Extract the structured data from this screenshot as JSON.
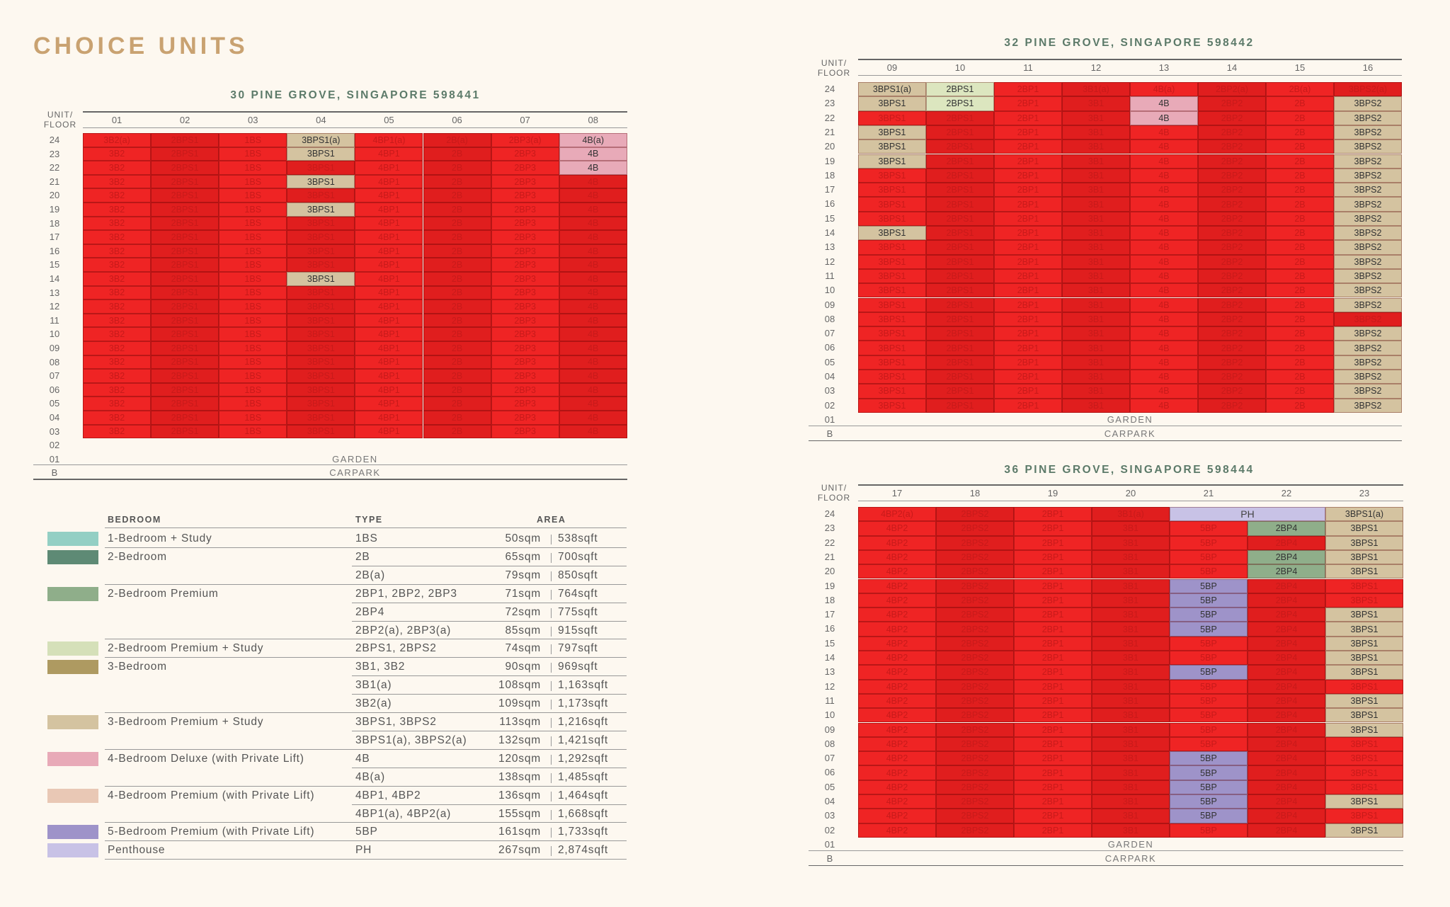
{
  "page_title": "CHOICE UNITS",
  "unit_floor_label": [
    "UNIT/",
    "FLOOR"
  ],
  "garden_label": "GARDEN",
  "carpark_label": "CARPARK",
  "colors": {
    "red": "#ef2424",
    "sold_shade": "#e01e1e",
    "beige": "#d4c3a0",
    "pale_green": "#dce6bf",
    "pink": "#e8aab8",
    "purple": "#9e93c9",
    "lavender": "#c8c2e6",
    "green": "#8fae8a"
  },
  "blocks": [
    {
      "id": "b30",
      "title": "30 PINE GROVE, SINGAPORE 598441",
      "columns": [
        "01",
        "02",
        "03",
        "04",
        "05",
        "06",
        "07",
        "08"
      ],
      "col_types": [
        "3B2",
        "2BPS1",
        "1BS",
        "3BPS1",
        "4BP1",
        "2B",
        "2BP3",
        "4B"
      ],
      "floors": [
        "24",
        "23",
        "22",
        "21",
        "20",
        "19",
        "18",
        "17",
        "16",
        "15",
        "14",
        "13",
        "12",
        "11",
        "10",
        "09",
        "08",
        "07",
        "06",
        "05",
        "04",
        "03"
      ],
      "extra_floors": [
        "02",
        "01",
        "B"
      ],
      "overrides_24": [
        "3B2(a)",
        "2BPS1",
        "1BS",
        "3BPS1(a)",
        "4BP1(a)",
        "2B(a)",
        "2BP3(a)",
        "4B(a)"
      ],
      "available": [
        {
          "floor": "24",
          "col": 3,
          "label": "3BPS1(a)",
          "color": "beige"
        },
        {
          "floor": "23",
          "col": 3,
          "label": "3BPS1",
          "color": "beige"
        },
        {
          "floor": "21",
          "col": 3,
          "label": "3BPS1",
          "color": "beige"
        },
        {
          "floor": "19",
          "col": 3,
          "label": "3BPS1",
          "color": "beige"
        },
        {
          "floor": "14",
          "col": 3,
          "label": "3BPS1",
          "color": "beige"
        },
        {
          "floor": "24",
          "col": 7,
          "label": "4B(a)",
          "color": "pink"
        },
        {
          "floor": "23",
          "col": 7,
          "label": "4B",
          "color": "pink"
        },
        {
          "floor": "22",
          "col": 7,
          "label": "4B",
          "color": "pink"
        }
      ]
    },
    {
      "id": "b32",
      "title": "32 PINE GROVE, SINGAPORE 598442",
      "columns": [
        "09",
        "10",
        "11",
        "12",
        "13",
        "14",
        "15",
        "16"
      ],
      "col_types": [
        "3BPS1",
        "2BPS1",
        "2BP1",
        "3B1",
        "4B",
        "2BP2",
        "2B",
        "3BPS2"
      ],
      "floors": [
        "24",
        "23",
        "22",
        "21",
        "20",
        "19",
        "18",
        "17",
        "16",
        "15",
        "14",
        "13",
        "12",
        "11",
        "10",
        "09",
        "08",
        "07",
        "06",
        "05",
        "04",
        "03",
        "02"
      ],
      "extra_floors": [
        "01",
        "B"
      ],
      "overrides_24": [
        "3BPS1(a)",
        "2BPS1",
        "2BP1",
        "3B1(a)",
        "4B(a)",
        "2BP2(a)",
        "2B(a)",
        "3BPS2(a)"
      ],
      "available": [
        {
          "floor": "24",
          "col": 0,
          "label": "3BPS1(a)",
          "color": "beige"
        },
        {
          "floor": "23",
          "col": 0,
          "label": "3BPS1",
          "color": "beige"
        },
        {
          "floor": "21",
          "col": 0,
          "label": "3BPS1",
          "color": "beige"
        },
        {
          "floor": "20",
          "col": 0,
          "label": "3BPS1",
          "color": "beige"
        },
        {
          "floor": "19",
          "col": 0,
          "label": "3BPS1",
          "color": "beige"
        },
        {
          "floor": "14",
          "col": 0,
          "label": "3BPS1",
          "color": "beige"
        },
        {
          "floor": "24",
          "col": 1,
          "label": "2BPS1",
          "color": "pale_green"
        },
        {
          "floor": "23",
          "col": 1,
          "label": "2BPS1",
          "color": "pale_green"
        },
        {
          "floor": "23",
          "col": 4,
          "label": "4B",
          "color": "pink"
        },
        {
          "floor": "22",
          "col": 4,
          "label": "4B",
          "color": "pink"
        },
        {
          "floor": "23",
          "col": 7,
          "label": "3BPS2",
          "color": "beige"
        },
        {
          "floor": "22",
          "col": 7,
          "label": "3BPS2",
          "color": "beige"
        },
        {
          "floor": "21",
          "col": 7,
          "label": "3BPS2",
          "color": "beige"
        },
        {
          "floor": "20",
          "col": 7,
          "label": "3BPS2",
          "color": "beige"
        },
        {
          "floor": "19",
          "col": 7,
          "label": "3BPS2",
          "color": "beige"
        },
        {
          "floor": "18",
          "col": 7,
          "label": "3BPS2",
          "color": "beige"
        },
        {
          "floor": "17",
          "col": 7,
          "label": "3BPS2",
          "color": "beige"
        },
        {
          "floor": "16",
          "col": 7,
          "label": "3BPS2",
          "color": "beige"
        },
        {
          "floor": "15",
          "col": 7,
          "label": "3BPS2",
          "color": "beige"
        },
        {
          "floor": "14",
          "col": 7,
          "label": "3BPS2",
          "color": "beige"
        },
        {
          "floor": "13",
          "col": 7,
          "label": "3BPS2",
          "color": "beige"
        },
        {
          "floor": "12",
          "col": 7,
          "label": "3BPS2",
          "color": "beige"
        },
        {
          "floor": "11",
          "col": 7,
          "label": "3BPS2",
          "color": "beige"
        },
        {
          "floor": "10",
          "col": 7,
          "label": "3BPS2",
          "color": "beige"
        },
        {
          "floor": "09",
          "col": 7,
          "label": "3BPS2",
          "color": "beige"
        },
        {
          "floor": "07",
          "col": 7,
          "label": "3BPS2",
          "color": "beige"
        },
        {
          "floor": "06",
          "col": 7,
          "label": "3BPS2",
          "color": "beige"
        },
        {
          "floor": "05",
          "col": 7,
          "label": "3BPS2",
          "color": "beige"
        },
        {
          "floor": "04",
          "col": 7,
          "label": "3BPS2",
          "color": "beige"
        },
        {
          "floor": "03",
          "col": 7,
          "label": "3BPS2",
          "color": "beige"
        },
        {
          "floor": "02",
          "col": 7,
          "label": "3BPS2",
          "color": "beige"
        }
      ]
    },
    {
      "id": "b36",
      "title": "36 PINE GROVE, SINGAPORE 598444",
      "columns": [
        "17",
        "18",
        "19",
        "20",
        "21",
        "22",
        "23"
      ],
      "col_types": [
        "4BP2",
        "2BPS2",
        "2BP1",
        "3B1",
        "5BP",
        "2BP4",
        "3BPS1"
      ],
      "floors": [
        "24",
        "23",
        "22",
        "21",
        "20",
        "19",
        "18",
        "17",
        "16",
        "15",
        "14",
        "13",
        "12",
        "11",
        "10",
        "09",
        "08",
        "07",
        "06",
        "05",
        "04",
        "03",
        "02"
      ],
      "extra_floors": [
        "01",
        "B"
      ],
      "overrides_24": [
        "4BP2(a)",
        "2BPS2",
        "2BP1",
        "3B1(a)",
        "PH",
        "PH",
        "3BPS1(a)"
      ],
      "penthouse": {
        "floor": "24",
        "cols": [
          4,
          5
        ],
        "label": "PH",
        "color": "lavender"
      },
      "available": [
        {
          "floor": "24",
          "col": 6,
          "label": "3BPS1(a)",
          "color": "beige"
        },
        {
          "floor": "23",
          "col": 5,
          "label": "2BP4",
          "color": "green"
        },
        {
          "floor": "21",
          "col": 5,
          "label": "2BP4",
          "color": "green"
        },
        {
          "floor": "20",
          "col": 5,
          "label": "2BP4",
          "color": "green"
        },
        {
          "floor": "19",
          "col": 4,
          "label": "5BP",
          "color": "purple"
        },
        {
          "floor": "18",
          "col": 4,
          "label": "5BP",
          "color": "purple"
        },
        {
          "floor": "17",
          "col": 4,
          "label": "5BP",
          "color": "purple"
        },
        {
          "floor": "16",
          "col": 4,
          "label": "5BP",
          "color": "purple"
        },
        {
          "floor": "13",
          "col": 4,
          "label": "5BP",
          "color": "purple"
        },
        {
          "floor": "07",
          "col": 4,
          "label": "5BP",
          "color": "purple"
        },
        {
          "floor": "06",
          "col": 4,
          "label": "5BP",
          "color": "purple"
        },
        {
          "floor": "05",
          "col": 4,
          "label": "5BP",
          "color": "purple"
        },
        {
          "floor": "04",
          "col": 4,
          "label": "5BP",
          "color": "purple"
        },
        {
          "floor": "03",
          "col": 4,
          "label": "5BP",
          "color": "purple"
        },
        {
          "floor": "23",
          "col": 6,
          "label": "3BPS1",
          "color": "beige"
        },
        {
          "floor": "22",
          "col": 6,
          "label": "3BPS1",
          "color": "beige"
        },
        {
          "floor": "21",
          "col": 6,
          "label": "3BPS1",
          "color": "beige"
        },
        {
          "floor": "20",
          "col": 6,
          "label": "3BPS1",
          "color": "beige"
        },
        {
          "floor": "17",
          "col": 6,
          "label": "3BPS1",
          "color": "beige"
        },
        {
          "floor": "16",
          "col": 6,
          "label": "3BPS1",
          "color": "beige"
        },
        {
          "floor": "15",
          "col": 6,
          "label": "3BPS1",
          "color": "beige"
        },
        {
          "floor": "14",
          "col": 6,
          "label": "3BPS1",
          "color": "beige"
        },
        {
          "floor": "13",
          "col": 6,
          "label": "3BPS1",
          "color": "beige"
        },
        {
          "floor": "11",
          "col": 6,
          "label": "3BPS1",
          "color": "beige"
        },
        {
          "floor": "10",
          "col": 6,
          "label": "3BPS1",
          "color": "beige"
        },
        {
          "floor": "09",
          "col": 6,
          "label": "3BPS1",
          "color": "beige"
        },
        {
          "floor": "04",
          "col": 6,
          "label": "3BPS1",
          "color": "beige"
        },
        {
          "floor": "02",
          "col": 6,
          "label": "3BPS1",
          "color": "beige"
        }
      ]
    }
  ],
  "legend": {
    "headers": {
      "bedroom": "BEDROOM",
      "type": "TYPE",
      "area": "AREA"
    },
    "rows": [
      {
        "swatch": "#93cfc4",
        "bedroom": "1-Bedroom + Study",
        "type": "1BS",
        "sqm": "50sqm",
        "sqft": "538sqft"
      },
      {
        "swatch": "#5e8a75",
        "bedroom": "2-Bedroom",
        "type": "2B",
        "sqm": "65sqm",
        "sqft": "700sqft"
      },
      {
        "swatch": "",
        "bedroom": "",
        "type": "2B(a)",
        "sqm": "79sqm",
        "sqft": "850sqft"
      },
      {
        "swatch": "#8fae8a",
        "bedroom": "2-Bedroom Premium",
        "type": "2BP1, 2BP2, 2BP3",
        "sqm": "71sqm",
        "sqft": "764sqft"
      },
      {
        "swatch": "",
        "bedroom": "",
        "type": "2BP4",
        "sqm": "72sqm",
        "sqft": "775sqft"
      },
      {
        "swatch": "",
        "bedroom": "",
        "type": "2BP2(a), 2BP3(a)",
        "sqm": "85sqm",
        "sqft": "915sqft"
      },
      {
        "swatch": "#d5e0b9",
        "bedroom": "2-Bedroom Premium + Study",
        "type": "2BPS1, 2BPS2",
        "sqm": "74sqm",
        "sqft": "797sqft"
      },
      {
        "swatch": "#ae9a61",
        "bedroom": "3-Bedroom",
        "type": "3B1, 3B2",
        "sqm": "90sqm",
        "sqft": "969sqft"
      },
      {
        "swatch": "",
        "bedroom": "",
        "type": "3B1(a)",
        "sqm": "108sqm",
        "sqft": "1,163sqft"
      },
      {
        "swatch": "",
        "bedroom": "",
        "type": "3B2(a)",
        "sqm": "109sqm",
        "sqft": "1,173sqft"
      },
      {
        "swatch": "#d4c3a0",
        "bedroom": "3-Bedroom Premium + Study",
        "type": "3BPS1, 3BPS2",
        "sqm": "113sqm",
        "sqft": "1,216sqft"
      },
      {
        "swatch": "",
        "bedroom": "",
        "type": "3BPS1(a), 3BPS2(a)",
        "sqm": "132sqm",
        "sqft": "1,421sqft"
      },
      {
        "swatch": "#e8aab8",
        "bedroom": "4-Bedroom Deluxe (with Private Lift)",
        "type": "4B",
        "sqm": "120sqm",
        "sqft": "1,292sqft"
      },
      {
        "swatch": "",
        "bedroom": "",
        "type": "4B(a)",
        "sqm": "138sqm",
        "sqft": "1,485sqft"
      },
      {
        "swatch": "#e9c8b5",
        "bedroom": "4-Bedroom Premium (with Private Lift)",
        "type": "4BP1, 4BP2",
        "sqm": "136sqm",
        "sqft": "1,464sqft"
      },
      {
        "swatch": "",
        "bedroom": "",
        "type": "4BP1(a), 4BP2(a)",
        "sqm": "155sqm",
        "sqft": "1,668sqft"
      },
      {
        "swatch": "#9e93c9",
        "bedroom": "5-Bedroom Premium (with Private Lift)",
        "type": "5BP",
        "sqm": "161sqm",
        "sqft": "1,733sqft"
      },
      {
        "swatch": "#c8c2e6",
        "bedroom": "Penthouse",
        "type": "PH",
        "sqm": "267sqm",
        "sqft": "2,874sqft"
      }
    ]
  }
}
